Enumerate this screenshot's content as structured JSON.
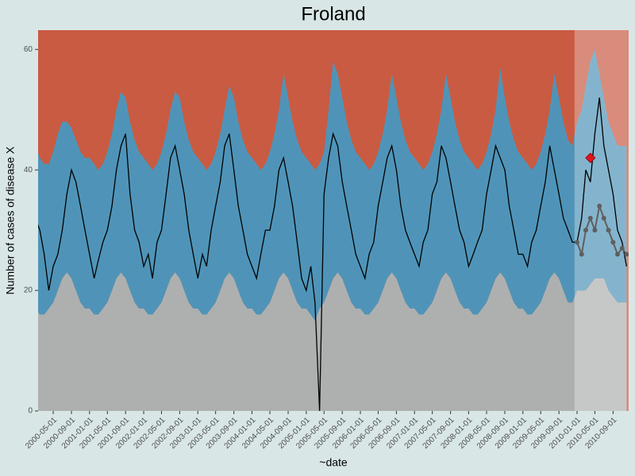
{
  "chart_data": {
    "type": "line",
    "title": "Froland",
    "x_label": "~date",
    "y_label": "Number of cases of disease X",
    "plot_background": "#c95b42",
    "page_background": "#d9e6e6",
    "highlight": {
      "from": "2009-12-15",
      "color": "#ffffff",
      "opacity": 0.3
    },
    "xlim": [
      "2000-01-20",
      "2010-12-15"
    ],
    "ylim": [
      0,
      63.2
    ],
    "yticks": [
      0,
      20,
      40,
      60
    ],
    "xticks": [
      "2000-05-01",
      "2000-09-01",
      "2001-01-01",
      "2001-05-01",
      "2001-09-01",
      "2002-01-01",
      "2002-05-01",
      "2002-09-01",
      "2003-01-01",
      "2003-05-01",
      "2003-09-01",
      "2004-01-01",
      "2004-05-01",
      "2004-09-01",
      "2005-01-01",
      "2005-05-01",
      "2005-09-01",
      "2006-01-01",
      "2006-05-01",
      "2006-09-01",
      "2007-01-01",
      "2007-05-01",
      "2007-09-01",
      "2008-01-01",
      "2008-05-01",
      "2008-09-01",
      "2009-01-01",
      "2009-05-01",
      "2009-09-01",
      "2010-01-01",
      "2010-05-01",
      "2010-09-01"
    ],
    "x": [
      "2000-01-01",
      "2000-02-01",
      "2000-03-01",
      "2000-04-01",
      "2000-05-01",
      "2000-06-01",
      "2000-07-01",
      "2000-08-01",
      "2000-09-01",
      "2000-10-01",
      "2000-11-01",
      "2000-12-01",
      "2001-01-01",
      "2001-02-01",
      "2001-03-01",
      "2001-04-01",
      "2001-05-01",
      "2001-06-01",
      "2001-07-01",
      "2001-08-01",
      "2001-09-01",
      "2001-10-01",
      "2001-11-01",
      "2001-12-01",
      "2002-01-01",
      "2002-02-01",
      "2002-03-01",
      "2002-04-01",
      "2002-05-01",
      "2002-06-01",
      "2002-07-01",
      "2002-08-01",
      "2002-09-01",
      "2002-10-01",
      "2002-11-01",
      "2002-12-01",
      "2003-01-01",
      "2003-02-01",
      "2003-03-01",
      "2003-04-01",
      "2003-05-01",
      "2003-06-01",
      "2003-07-01",
      "2003-08-01",
      "2003-09-01",
      "2003-10-01",
      "2003-11-01",
      "2003-12-01",
      "2004-01-01",
      "2004-02-01",
      "2004-03-01",
      "2004-04-01",
      "2004-05-01",
      "2004-06-01",
      "2004-07-01",
      "2004-08-01",
      "2004-09-01",
      "2004-10-01",
      "2004-11-01",
      "2004-12-01",
      "2005-01-01",
      "2005-02-01",
      "2005-03-01",
      "2005-04-01",
      "2005-05-01",
      "2005-06-01",
      "2005-07-01",
      "2005-08-01",
      "2005-09-01",
      "2005-10-01",
      "2005-11-01",
      "2005-12-01",
      "2006-01-01",
      "2006-02-01",
      "2006-03-01",
      "2006-04-01",
      "2006-05-01",
      "2006-06-01",
      "2006-07-01",
      "2006-08-01",
      "2006-09-01",
      "2006-10-01",
      "2006-11-01",
      "2006-12-01",
      "2007-01-01",
      "2007-02-01",
      "2007-03-01",
      "2007-04-01",
      "2007-05-01",
      "2007-06-01",
      "2007-07-01",
      "2007-08-01",
      "2007-09-01",
      "2007-10-01",
      "2007-11-01",
      "2007-12-01",
      "2008-01-01",
      "2008-02-01",
      "2008-03-01",
      "2008-04-01",
      "2008-05-01",
      "2008-06-01",
      "2008-07-01",
      "2008-08-01",
      "2008-09-01",
      "2008-10-01",
      "2008-11-01",
      "2008-12-01",
      "2009-01-01",
      "2009-02-01",
      "2009-03-01",
      "2009-04-01",
      "2009-05-01",
      "2009-06-01",
      "2009-07-01",
      "2009-08-01",
      "2009-09-01",
      "2009-10-01",
      "2009-11-01",
      "2009-12-01",
      "2010-01-01",
      "2010-02-01",
      "2010-03-01",
      "2010-04-01",
      "2010-05-01",
      "2010-06-01",
      "2010-07-01",
      "2010-08-01",
      "2010-09-01",
      "2010-10-01",
      "2010-11-01",
      "2010-12-01"
    ],
    "series": [
      {
        "style": "area",
        "color": "#aeb0b0",
        "values": [
          17,
          16,
          16,
          17,
          18,
          20,
          22,
          23,
          22,
          20,
          18,
          17,
          17,
          16,
          16,
          17,
          18,
          20,
          22,
          23,
          22,
          20,
          18,
          17,
          17,
          16,
          16,
          17,
          18,
          20,
          22,
          23,
          22,
          20,
          18,
          17,
          17,
          16,
          16,
          17,
          18,
          20,
          22,
          23,
          22,
          20,
          18,
          17,
          17,
          16,
          16,
          17,
          18,
          20,
          22,
          23,
          22,
          20,
          18,
          17,
          17,
          16,
          15,
          17,
          18,
          20,
          22,
          23,
          22,
          20,
          18,
          17,
          17,
          16,
          16,
          17,
          18,
          20,
          22,
          23,
          22,
          20,
          18,
          17,
          17,
          16,
          16,
          17,
          18,
          20,
          22,
          23,
          22,
          20,
          18,
          17,
          17,
          16,
          16,
          17,
          18,
          20,
          22,
          23,
          22,
          20,
          18,
          17,
          17,
          16,
          16,
          17,
          18,
          20,
          22,
          23,
          22,
          20,
          18,
          18,
          20,
          20,
          20,
          21,
          22,
          22,
          22,
          20,
          19,
          18,
          18,
          18
        ]
      },
      {
        "style": "area",
        "color": "#4f94b8",
        "values": [
          44,
          42,
          41,
          41,
          43,
          46,
          48,
          48,
          47,
          45,
          43,
          42,
          42,
          41,
          40,
          41,
          43,
          46,
          50,
          53,
          52,
          48,
          45,
          43,
          42,
          41,
          40,
          41,
          43,
          46,
          50,
          53,
          52,
          48,
          45,
          43,
          42,
          41,
          40,
          41,
          43,
          46,
          50,
          54,
          52,
          48,
          45,
          43,
          42,
          41,
          40,
          41,
          43,
          46,
          50,
          56,
          52,
          48,
          45,
          43,
          42,
          41,
          40,
          41,
          43,
          50,
          58,
          56,
          52,
          48,
          45,
          43,
          42,
          41,
          40,
          41,
          43,
          46,
          50,
          56,
          52,
          48,
          45,
          43,
          42,
          41,
          40,
          41,
          43,
          46,
          50,
          56,
          52,
          48,
          45,
          43,
          42,
          41,
          40,
          41,
          43,
          46,
          50,
          57,
          52,
          48,
          45,
          43,
          42,
          41,
          40,
          41,
          43,
          46,
          50,
          56,
          52,
          48,
          45,
          44,
          48,
          50,
          54,
          58,
          60,
          56,
          52,
          48,
          46,
          44,
          44,
          44
        ]
      },
      {
        "style": "line",
        "color": "#000000",
        "values": [
          32,
          30,
          26,
          20,
          24,
          26,
          30,
          36,
          40,
          38,
          34,
          30,
          26,
          22,
          25,
          28,
          30,
          34,
          40,
          44,
          46,
          36,
          30,
          28,
          24,
          26,
          22,
          28,
          30,
          36,
          42,
          44,
          40,
          36,
          30,
          26,
          22,
          26,
          24,
          30,
          34,
          38,
          44,
          46,
          40,
          34,
          30,
          26,
          24,
          22,
          26,
          30,
          30,
          34,
          40,
          42,
          38,
          34,
          28,
          22,
          20,
          24,
          18,
          0,
          36,
          42,
          46,
          44,
          38,
          34,
          30,
          26,
          24,
          22,
          26,
          28,
          34,
          38,
          42,
          44,
          40,
          34,
          30,
          28,
          26,
          24,
          28,
          30,
          36,
          38,
          44,
          42,
          38,
          34,
          30,
          28,
          24,
          26,
          28,
          30,
          36,
          40,
          44,
          42,
          40,
          34,
          30,
          26,
          26,
          24,
          28,
          30,
          34,
          38,
          44,
          40,
          36,
          32,
          30,
          28,
          28,
          32,
          40,
          38,
          46,
          52,
          44,
          40,
          36,
          30,
          28,
          24
        ]
      },
      {
        "style": "points",
        "color": "#5f5f5f",
        "values": [
          null,
          null,
          null,
          null,
          null,
          null,
          null,
          null,
          null,
          null,
          null,
          null,
          null,
          null,
          null,
          null,
          null,
          null,
          null,
          null,
          null,
          null,
          null,
          null,
          null,
          null,
          null,
          null,
          null,
          null,
          null,
          null,
          null,
          null,
          null,
          null,
          null,
          null,
          null,
          null,
          null,
          null,
          null,
          null,
          null,
          null,
          null,
          null,
          null,
          null,
          null,
          null,
          null,
          null,
          null,
          null,
          null,
          null,
          null,
          null,
          null,
          null,
          null,
          null,
          null,
          null,
          null,
          null,
          null,
          null,
          null,
          null,
          null,
          null,
          null,
          null,
          null,
          null,
          null,
          null,
          null,
          null,
          null,
          null,
          null,
          null,
          null,
          null,
          null,
          null,
          null,
          null,
          null,
          null,
          null,
          null,
          null,
          null,
          null,
          null,
          null,
          null,
          null,
          null,
          null,
          null,
          null,
          null,
          null,
          null,
          null,
          null,
          null,
          null,
          null,
          null,
          null,
          null,
          null,
          null,
          28,
          26,
          30,
          32,
          30,
          34,
          32,
          30,
          28,
          26,
          27,
          26
        ]
      },
      {
        "style": "diamond",
        "color": "#e0141e",
        "values": [
          null,
          null,
          null,
          null,
          null,
          null,
          null,
          null,
          null,
          null,
          null,
          null,
          null,
          null,
          null,
          null,
          null,
          null,
          null,
          null,
          null,
          null,
          null,
          null,
          null,
          null,
          null,
          null,
          null,
          null,
          null,
          null,
          null,
          null,
          null,
          null,
          null,
          null,
          null,
          null,
          null,
          null,
          null,
          null,
          null,
          null,
          null,
          null,
          null,
          null,
          null,
          null,
          null,
          null,
          null,
          null,
          null,
          null,
          null,
          null,
          null,
          null,
          null,
          null,
          null,
          null,
          null,
          null,
          null,
          null,
          null,
          null,
          null,
          null,
          null,
          null,
          null,
          null,
          null,
          null,
          null,
          null,
          null,
          null,
          null,
          null,
          null,
          null,
          null,
          null,
          null,
          null,
          null,
          null,
          null,
          null,
          null,
          null,
          null,
          null,
          null,
          null,
          null,
          null,
          null,
          null,
          null,
          null,
          null,
          null,
          null,
          null,
          null,
          null,
          null,
          null,
          null,
          null,
          null,
          null,
          null,
          null,
          null,
          42,
          null,
          null,
          null,
          null,
          null,
          null,
          null,
          null
        ]
      }
    ]
  }
}
